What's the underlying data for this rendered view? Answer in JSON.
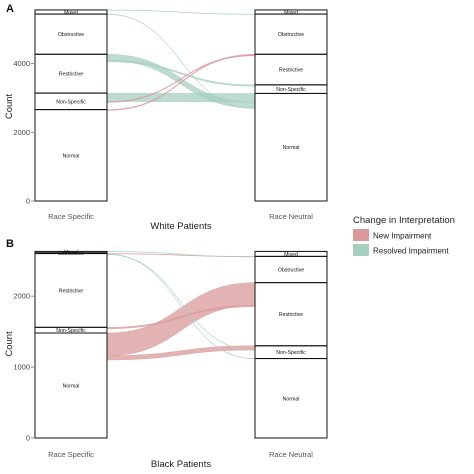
{
  "legend": {
    "title": "Change in Interpretation",
    "items": [
      {
        "label": "New Impairment",
        "color": "#d9999b"
      },
      {
        "label": "Resolved Impairment",
        "color": "#a7cfbf"
      }
    ]
  },
  "chart_data": [
    {
      "type": "alluvial",
      "panel_label": "A",
      "xlabel": "White Patients",
      "ylabel": "Count",
      "ylim": [
        0,
        5500
      ],
      "yticks": [
        0,
        2000,
        4000
      ],
      "axes": [
        "Race Specific",
        "Race Neutral"
      ],
      "strata": {
        "Race Specific": [
          {
            "label": "Normal",
            "from": 0,
            "to": 2660
          },
          {
            "label": "Non-Specific",
            "from": 2660,
            "to": 3140
          },
          {
            "label": "Restrictive",
            "from": 3140,
            "to": 4270
          },
          {
            "label": "Obstructive",
            "from": 4270,
            "to": 5440
          },
          {
            "label": "Mixed",
            "from": 5440,
            "to": 5560
          }
        ],
        "Race Neutral": [
          {
            "label": "Normal",
            "from": 0,
            "to": 3130
          },
          {
            "label": "Non-Specific",
            "from": 3130,
            "to": 3380
          },
          {
            "label": "Restrictive",
            "from": 3380,
            "to": 4270
          },
          {
            "label": "Obstructive",
            "from": 4270,
            "to": 5440
          },
          {
            "label": "Mixed",
            "from": 5440,
            "to": 5560
          }
        ]
      },
      "flows": [
        {
          "from": "Non-Specific",
          "to": "Normal",
          "value": 250,
          "change": "Resolved Impairment"
        },
        {
          "from": "Restrictive",
          "to": "Normal",
          "value": 180,
          "change": "Resolved Impairment"
        },
        {
          "from": "Restrictive",
          "to": "Non-Specific",
          "value": 40,
          "change": "Resolved Impairment"
        },
        {
          "from": "Mixed",
          "to": "Obstructive",
          "value": 10,
          "change": "Resolved Impairment"
        },
        {
          "from": "Obstructive",
          "to": "Normal",
          "value": 10,
          "change": "Resolved Impairment"
        },
        {
          "from": "Normal",
          "to": "Restrictive",
          "value": 25,
          "change": "New Impairment"
        },
        {
          "from": "Non-Specific",
          "to": "Restrictive",
          "value": 20,
          "change": "New Impairment"
        }
      ]
    },
    {
      "type": "alluvial",
      "panel_label": "B",
      "xlabel": "Black Patients",
      "ylabel": "Count",
      "ylim": [
        0,
        2650
      ],
      "yticks": [
        0,
        1000,
        2000
      ],
      "axes": [
        "Race Specific",
        "Race Neutral"
      ],
      "strata": {
        "Race Specific": [
          {
            "label": "Normal",
            "from": 0,
            "to": 1480
          },
          {
            "label": "Non-Specific",
            "from": 1480,
            "to": 1560
          },
          {
            "label": "Restrictive",
            "from": 1560,
            "to": 2600
          },
          {
            "label": "Obstructive",
            "from": 2600,
            "to": 2610
          },
          {
            "label": "Mixed",
            "from": 2610,
            "to": 2630
          }
        ],
        "Race Neutral": [
          {
            "label": "Normal",
            "from": 0,
            "to": 1120
          },
          {
            "label": "Non-Specific",
            "from": 1120,
            "to": 1300
          },
          {
            "label": "Restrictive",
            "from": 1300,
            "to": 2190
          },
          {
            "label": "Obstructive",
            "from": 2190,
            "to": 2560
          },
          {
            "label": "Mixed",
            "from": 2560,
            "to": 2630
          }
        ]
      },
      "flows": [
        {
          "from": "Normal",
          "to": "Restrictive",
          "value": 320,
          "change": "New Impairment"
        },
        {
          "from": "Normal",
          "to": "Non-Specific",
          "value": 60,
          "change": "New Impairment"
        },
        {
          "from": "Non-Specific",
          "to": "Restrictive",
          "value": 20,
          "change": "New Impairment"
        },
        {
          "from": "Restrictive",
          "to": "Obstructive",
          "value": 5,
          "change": "New Impairment"
        },
        {
          "from": "Restrictive",
          "to": "Normal",
          "value": 5,
          "change": "Resolved Impairment"
        },
        {
          "from": "Restrictive",
          "to": "Non-Specific",
          "value": 5,
          "change": "Resolved Impairment"
        },
        {
          "from": "Mixed",
          "to": "Obstructive",
          "value": 3,
          "change": "Resolved Impairment"
        }
      ]
    }
  ]
}
